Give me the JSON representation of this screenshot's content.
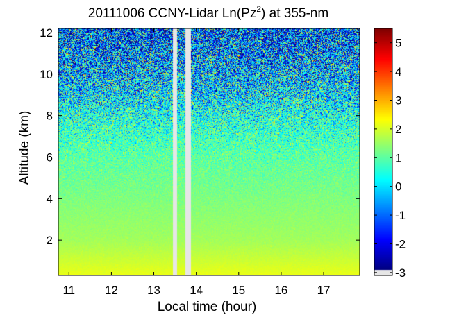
{
  "chart_data": {
    "type": "heatmap",
    "title_main": "20111006 CCNY-Lidar Ln(Pz",
    "title_sup": "2",
    "title_end": ") at 355-nm",
    "xlabel": "Local time (hour)",
    "ylabel": "Altitude (km)",
    "xlim": [
      10.75,
      17.85
    ],
    "ylim": [
      0.3,
      12.2
    ],
    "xticks": [
      11,
      12,
      13,
      14,
      15,
      16,
      17
    ],
    "yticks": [
      2,
      4,
      6,
      8,
      10,
      12
    ],
    "data_gaps_hours": [
      [
        13.45,
        13.55
      ],
      [
        13.75,
        13.88
      ]
    ],
    "colorbar": {
      "min": -3.1,
      "max": 5.5,
      "ticks": [
        -3,
        -2,
        -1,
        0,
        1,
        2,
        3,
        4,
        5
      ],
      "colormap": "jet",
      "nodata_color": "#e6e6e6"
    },
    "profile": {
      "altitude_km": [
        0.3,
        1,
        2,
        3,
        4,
        5,
        6,
        7,
        8,
        9,
        10,
        11,
        12.2
      ],
      "mean_ln_pz2": [
        2.1,
        1.85,
        1.5,
        1.35,
        1.2,
        1.05,
        0.9,
        0.65,
        0.3,
        -0.1,
        -0.5,
        -0.9,
        -1.3
      ],
      "noise_std": [
        0.05,
        0.06,
        0.08,
        0.1,
        0.15,
        0.25,
        0.4,
        0.7,
        1.0,
        1.4,
        1.7,
        1.9,
        2.0
      ]
    }
  }
}
